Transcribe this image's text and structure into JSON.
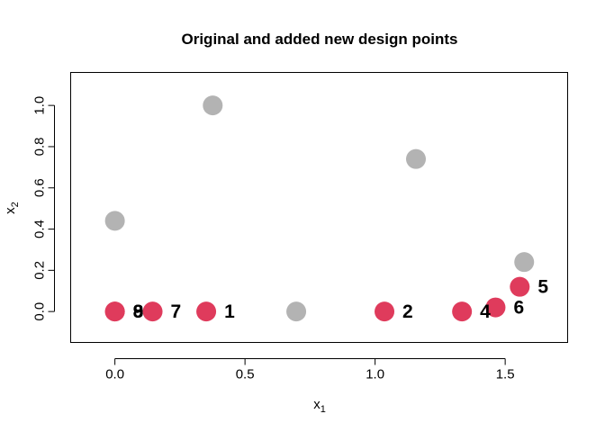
{
  "chart_data": {
    "type": "scatter",
    "title": "Original and added new design points",
    "xlabel": {
      "base": "x",
      "sub": "1"
    },
    "ylabel": {
      "base": "x",
      "sub": "2"
    },
    "xlim": [
      -0.17,
      1.74
    ],
    "ylim": [
      -0.15,
      1.16
    ],
    "xticks": [
      0.0,
      0.5,
      1.0,
      1.5
    ],
    "xtick_labels": [
      "0.0",
      "0.5",
      "1.0",
      "1.5"
    ],
    "yticks": [
      0.0,
      0.2,
      0.4,
      0.6,
      0.8,
      1.0
    ],
    "ytick_labels": [
      "0.0",
      "0.2",
      "0.4",
      "0.6",
      "0.8",
      "1.0"
    ],
    "grid": false,
    "series": [
      {
        "color": "#b3b3b3",
        "points": [
          {
            "x": 0.0,
            "y": 0.44
          },
          {
            "x": 0.376,
            "y": 1.0
          },
          {
            "x": 0.697,
            "y": 0.0
          },
          {
            "x": 1.157,
            "y": 0.74
          },
          {
            "x": 1.573,
            "y": 0.24
          }
        ]
      },
      {
        "color": "#df3b5c",
        "points": [
          {
            "x": 0.0,
            "y": 0.0,
            "label": "8"
          },
          {
            "x": 0.0,
            "y": 0.0,
            "label": "9"
          },
          {
            "x": 0.145,
            "y": 0.0,
            "label": "7"
          },
          {
            "x": 0.351,
            "y": 0.0,
            "label": "1"
          },
          {
            "x": 1.036,
            "y": 0.0,
            "label": "2"
          },
          {
            "x": 1.334,
            "y": 0.0,
            "label": "4"
          },
          {
            "x": 1.463,
            "y": 0.02,
            "label": "6"
          },
          {
            "x": 1.556,
            "y": 0.12,
            "label": "5"
          }
        ]
      }
    ]
  }
}
